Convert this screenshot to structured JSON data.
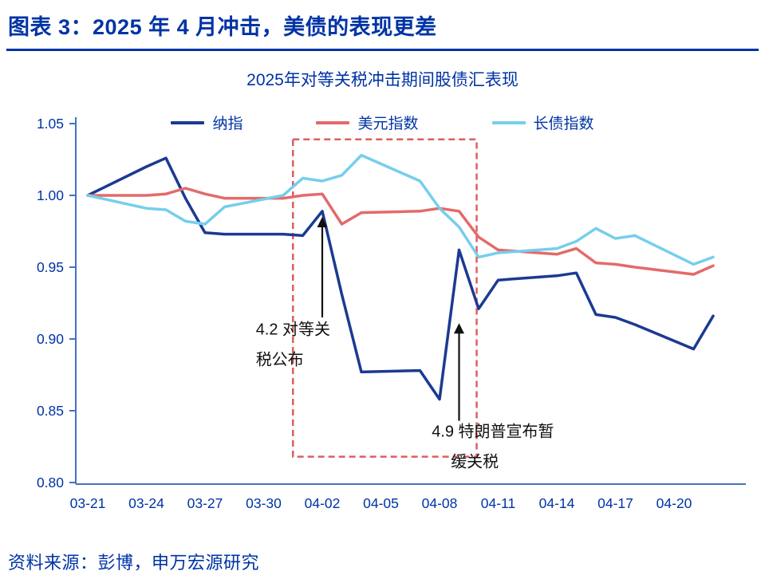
{
  "header": {
    "title": "图表 3：2025 年 4 月冲击，美债的表现更差"
  },
  "footer": {
    "source": "资料来源：彭博，申万宏源研究"
  },
  "theme": {
    "accent_blue": "#0033A6",
    "axis_blue": "#4472C4",
    "annotation_black": "#111111"
  },
  "chart_data": {
    "type": "line",
    "title": "2025年对等关税冲击期间股债汇表现",
    "ylim": [
      0.8,
      1.05
    ],
    "y_ticks": [
      1.05,
      1.0,
      0.95,
      0.9,
      0.85,
      0.8
    ],
    "x_tick_labels": [
      "03-21",
      "03-24",
      "03-27",
      "03-30",
      "04-02",
      "04-05",
      "04-08",
      "04-11",
      "04-14",
      "04-17",
      "04-20"
    ],
    "dates": [
      "03-21",
      "03-24",
      "03-25",
      "03-26",
      "03-27",
      "03-28",
      "03-31",
      "04-01",
      "04-02",
      "04-03",
      "04-04",
      "04-07",
      "04-08",
      "04-09",
      "04-10",
      "04-11",
      "04-14",
      "04-15",
      "04-16",
      "04-17",
      "04-18",
      "04-21",
      "04-22"
    ],
    "days": [
      0,
      3,
      4,
      5,
      6,
      7,
      10,
      11,
      12,
      13,
      14,
      17,
      18,
      19,
      20,
      21,
      24,
      25,
      26,
      27,
      28,
      31,
      32
    ],
    "series": [
      {
        "id": "nasdaq",
        "name": "纳指",
        "color": "#1B3A91",
        "values": [
          1.0,
          1.02,
          1.026,
          0.998,
          0.974,
          0.973,
          0.973,
          0.972,
          0.989,
          0.931,
          0.877,
          0.878,
          0.858,
          0.962,
          0.921,
          0.941,
          0.944,
          0.946,
          0.917,
          0.915,
          0.91,
          0.893,
          0.916
        ]
      },
      {
        "id": "usd-index",
        "name": "美元指数",
        "color": "#E46A6A",
        "values": [
          1.0,
          1.0,
          1.001,
          1.005,
          1.001,
          0.998,
          0.998,
          1.0,
          1.001,
          0.98,
          0.988,
          0.989,
          0.991,
          0.989,
          0.971,
          0.962,
          0.959,
          0.963,
          0.953,
          0.952,
          0.95,
          0.945,
          0.951
        ]
      },
      {
        "id": "long-bond-index",
        "name": "长债指数",
        "color": "#76CEEC",
        "values": [
          1.0,
          0.991,
          0.99,
          0.982,
          0.98,
          0.992,
          1.0,
          1.012,
          1.01,
          1.014,
          1.028,
          1.01,
          0.991,
          0.978,
          0.957,
          0.96,
          0.963,
          0.968,
          0.977,
          0.97,
          0.972,
          0.952,
          0.957
        ]
      }
    ],
    "highlight_box": {
      "day_from": 10.5,
      "day_to": 19.9,
      "y_from": 0.818,
      "y_to": 1.039,
      "color": "#DD5F5F"
    },
    "annotations": [
      {
        "id": "annotation-tariff-announced",
        "lines": [
          "4.2 对等关",
          "税公布"
        ],
        "line_dx": [
          0,
          0
        ],
        "text_day": 8.6,
        "text_y": 0.903,
        "arrow_day": 12.0,
        "arrow_y_from": 0.915,
        "arrow_y_to": 0.985
      },
      {
        "id": "annotation-trump-pause",
        "lines": [
          "4.9 特朗普宣布暂",
          "缓关税"
        ],
        "line_dx": [
          0,
          24
        ],
        "text_day": 17.6,
        "text_y": 0.832,
        "arrow_day": 19.0,
        "arrow_y_from": 0.843,
        "arrow_y_to": 0.911
      }
    ],
    "legend_position": "top"
  }
}
